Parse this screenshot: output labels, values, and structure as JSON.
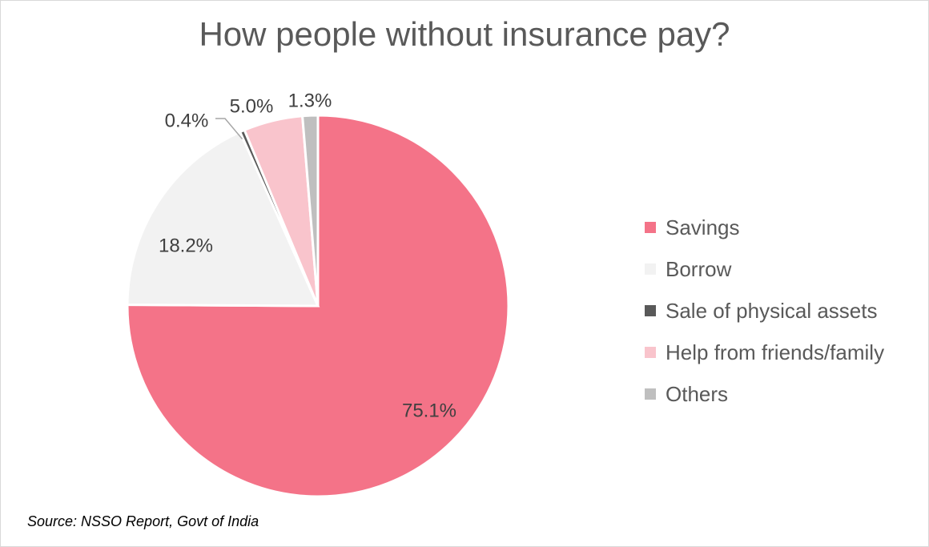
{
  "chart_data": {
    "type": "pie",
    "title": "How people without insurance pay?",
    "slices": [
      {
        "name": "Savings",
        "value": 75.1,
        "label": "75.1%",
        "color": "#f47388"
      },
      {
        "name": "Borrow",
        "value": 18.2,
        "label": "18.2%",
        "color": "#f2f2f2"
      },
      {
        "name": "Sale of physical assets",
        "value": 0.4,
        "label": "0.4%",
        "color": "#595959"
      },
      {
        "name": "Help from friends/family",
        "value": 5.0,
        "label": "5.0%",
        "color": "#f9c4cc"
      },
      {
        "name": "Others",
        "value": 1.3,
        "label": "1.3%",
        "color": "#bfbfbf"
      }
    ],
    "legend_position": "right",
    "source": "Source: NSSO Report, Govt of India"
  }
}
